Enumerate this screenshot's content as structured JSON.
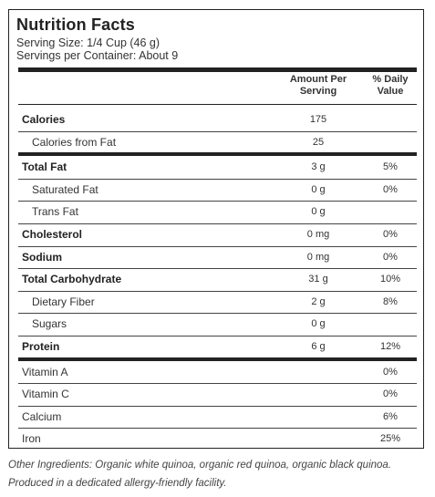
{
  "label": {
    "title": "Nutrition Facts",
    "serving_size": "Serving Size: 1/4 Cup (46 g)",
    "servings_per_container": "Servings per Container: About 9",
    "header_amount": "Amount Per Serving",
    "header_dv": "% Daily Value",
    "rows": [
      {
        "name": "Calories",
        "amount": "175",
        "dv": "",
        "style": "main"
      },
      {
        "name": "Calories from Fat",
        "amount": "25",
        "dv": "",
        "style": "sub"
      },
      {
        "name": "Total Fat",
        "amount": "3 g",
        "dv": "5%",
        "style": "main"
      },
      {
        "name": "Saturated Fat",
        "amount": "0 g",
        "dv": "0%",
        "style": "sub"
      },
      {
        "name": "Trans Fat",
        "amount": "0 g",
        "dv": "",
        "style": "sub"
      },
      {
        "name": "Cholesterol",
        "amount": "0 mg",
        "dv": "0%",
        "style": "main"
      },
      {
        "name": "Sodium",
        "amount": "0 mg",
        "dv": "0%",
        "style": "main"
      },
      {
        "name": "Total Carbohydrate",
        "amount": "31 g",
        "dv": "10%",
        "style": "main"
      },
      {
        "name": "Dietary Fiber",
        "amount": "2 g",
        "dv": "8%",
        "style": "sub"
      },
      {
        "name": "Sugars",
        "amount": "0 g",
        "dv": "",
        "style": "sub"
      },
      {
        "name": "Protein",
        "amount": "6 g",
        "dv": "12%",
        "style": "main"
      },
      {
        "name": "Vitamin A",
        "amount": "",
        "dv": "0%",
        "style": "plain"
      },
      {
        "name": "Vitamin C",
        "amount": "",
        "dv": "0%",
        "style": "plain"
      },
      {
        "name": "Calcium",
        "amount": "",
        "dv": "6%",
        "style": "plain"
      },
      {
        "name": "Iron",
        "amount": "",
        "dv": "25%",
        "style": "plain"
      }
    ]
  },
  "footer": {
    "ingredients": "Other Ingredients: Organic white quinoa, organic red quinoa, organic black quinoa.",
    "facility": "Produced in a dedicated allergy-friendly facility."
  }
}
